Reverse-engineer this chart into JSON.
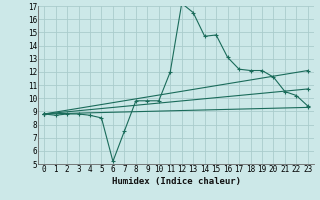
{
  "xlabel": "Humidex (Indice chaleur)",
  "bg_color": "#cce8e8",
  "grid_color": "#aacccc",
  "line_color": "#1a6b5a",
  "xlim": [
    -0.5,
    23.5
  ],
  "ylim": [
    5,
    17
  ],
  "xticks": [
    0,
    1,
    2,
    3,
    4,
    5,
    6,
    7,
    8,
    9,
    10,
    11,
    12,
    13,
    14,
    15,
    16,
    17,
    18,
    19,
    20,
    21,
    22,
    23
  ],
  "yticks": [
    5,
    6,
    7,
    8,
    9,
    10,
    11,
    12,
    13,
    14,
    15,
    16,
    17
  ],
  "line1_x": [
    0,
    1,
    2,
    3,
    4,
    5,
    6,
    7,
    8,
    9,
    10,
    11,
    12,
    13,
    14,
    15,
    16,
    17,
    18,
    19,
    20,
    21,
    22,
    23
  ],
  "line1_y": [
    8.8,
    8.7,
    8.8,
    8.8,
    8.7,
    8.5,
    5.2,
    7.5,
    9.8,
    9.8,
    9.8,
    12.0,
    17.2,
    16.5,
    14.7,
    14.8,
    13.1,
    12.2,
    12.1,
    12.1,
    11.6,
    10.5,
    10.2,
    9.4
  ],
  "line2_x": [
    0,
    23
  ],
  "line2_y": [
    8.8,
    9.3
  ],
  "line3_x": [
    0,
    23
  ],
  "line3_y": [
    8.8,
    12.1
  ],
  "line4_x": [
    0,
    23
  ],
  "line4_y": [
    8.8,
    10.7
  ]
}
